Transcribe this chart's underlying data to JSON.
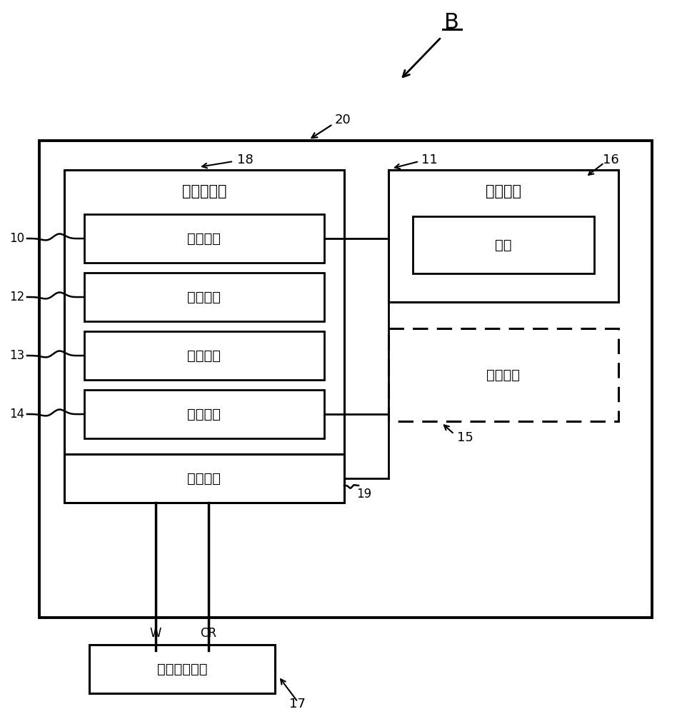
{
  "bg_color": "#ffffff",
  "title_B": "B",
  "label_20": "20",
  "label_18": "18",
  "label_11": "11",
  "label_16": "16",
  "label_10": "10",
  "label_12": "12",
  "label_13": "13",
  "label_14": "14",
  "label_15": "15",
  "label_19": "19",
  "label_17": "17",
  "text_control_computer": "控制计算机",
  "text_output_unit": "输出单元",
  "text_control_unit": "控制单元",
  "text_arithmetic_unit": "算术单元",
  "text_detection_unit": "检测单元",
  "text_potentiostat": "恒电势计",
  "text_power_device": "电源装置",
  "text_battery": "电池",
  "text_display_unit": "显示单元",
  "text_glucose_sensor": "葡萄糖传感器",
  "text_W": "W",
  "text_CR": "CR"
}
